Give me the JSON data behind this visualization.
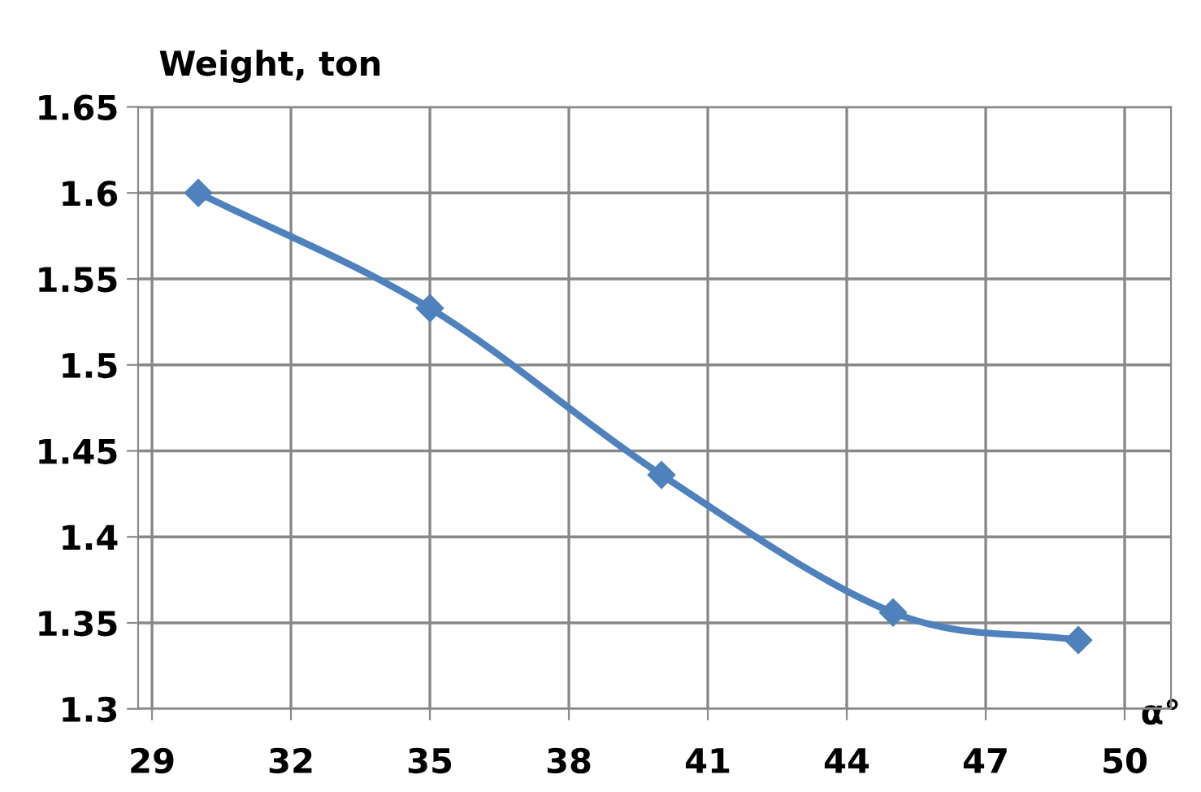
{
  "chart_data": {
    "type": "line",
    "ylabel": "Weight, ton",
    "xlabel": "α°",
    "x": [
      30,
      35,
      40,
      45,
      49
    ],
    "series": [
      {
        "color": "#4f81bd",
        "values": [
          1.6,
          1.533,
          1.436,
          1.356,
          1.34
        ]
      }
    ],
    "xlim": [
      28.7,
      51
    ],
    "xticks": [
      29,
      32,
      35,
      38,
      41,
      44,
      47,
      50
    ],
    "ylim": [
      1.3,
      1.65
    ],
    "yticks": [
      1.3,
      1.35,
      1.4,
      1.45,
      1.5,
      1.55,
      1.6,
      1.65
    ],
    "grid": true,
    "marker": "diamond",
    "line_style": "solid",
    "legend": false
  }
}
